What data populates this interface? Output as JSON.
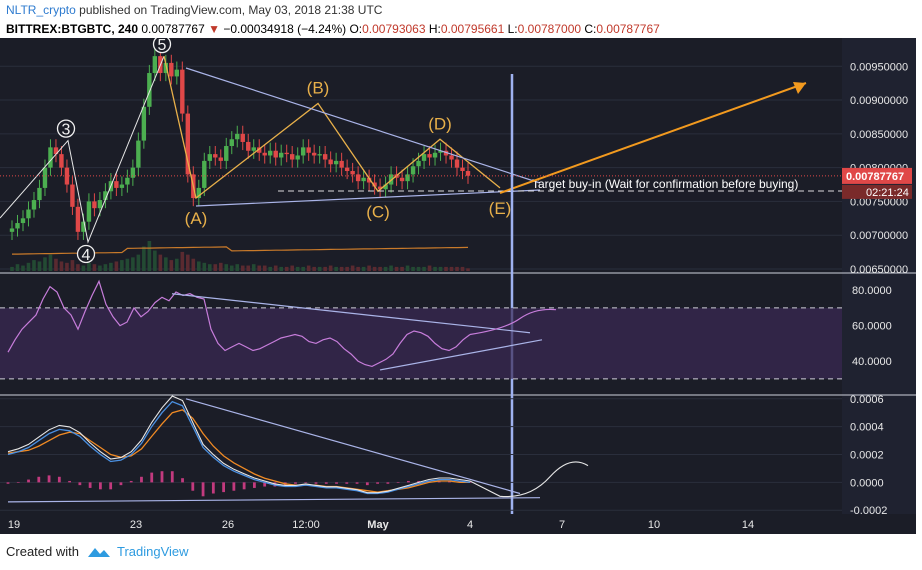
{
  "header": {
    "user": "NLTR_crypto",
    "published": "published on TradingView.com, May 03, 2018 21:38 UTC",
    "symbol": "BITTREX:BTGBTC, 240",
    "price": "0.00787767",
    "change": "−0.00034918 (−4.24%)",
    "o_label": "O:",
    "o_value": "0.00793063",
    "h_label": "H:",
    "h_value": "0.00795661",
    "l_label": "L:",
    "l_value": "0.00787000",
    "c_label": "C:",
    "c_value": "0.00787767"
  },
  "footer": {
    "created_with": "Created with",
    "brand": "TradingView"
  },
  "colors": {
    "background": "#1b1d27",
    "candle_up": "#4caf50",
    "candle_down": "#e04848",
    "wave": "#e8b04a",
    "trendline": "#aab4e8",
    "rsi": "#c77ddb",
    "macd": "#4a90e2",
    "signal": "#f08a24",
    "price_tag": "#e04848"
  },
  "chart_data": {
    "type": "candlestick",
    "x_ticks": [
      "19",
      "23",
      "26",
      "12:00",
      "May",
      "4",
      "7",
      "10",
      "14"
    ],
    "price_axis": {
      "ticks": [
        "0.00950000",
        "0.00900000",
        "0.00850000",
        "0.00800000",
        "0.00750000",
        "0.00700000",
        "0.00650000"
      ],
      "ylim": [
        0.0065,
        0.0098
      ],
      "last_price": "0.00787767",
      "countdown": "02:21:24"
    },
    "price_close": [
      0.0071,
      0.00718,
      0.00725,
      0.00738,
      0.00752,
      0.0077,
      0.008,
      0.0083,
      0.0082,
      0.008,
      0.00775,
      0.00742,
      0.00705,
      0.0072,
      0.0075,
      0.0074,
      0.00752,
      0.00765,
      0.0078,
      0.0077,
      0.00775,
      0.00785,
      0.008,
      0.0084,
      0.0089,
      0.0094,
      0.00965,
      0.0094,
      0.00955,
      0.00935,
      0.00945,
      0.0088,
      0.0079,
      0.00755,
      0.0077,
      0.0081,
      0.0082,
      0.00815,
      0.0081,
      0.00832,
      0.00842,
      0.0085,
      0.00838,
      0.00825,
      0.0083,
      0.00822,
      0.00818,
      0.00825,
      0.00815,
      0.00822,
      0.0082,
      0.00812,
      0.00818,
      0.0083,
      0.00822,
      0.00818,
      0.0082,
      0.00812,
      0.00805,
      0.0081,
      0.008,
      0.00795,
      0.0079,
      0.0078,
      0.00785,
      0.00778,
      0.00772,
      0.00768,
      0.00775,
      0.0079,
      0.00785,
      0.0078,
      0.0079,
      0.00802,
      0.0081,
      0.0082,
      0.00815,
      0.00822,
      0.00825,
      0.00818,
      0.00812,
      0.008,
      0.00795,
      0.00788
    ],
    "wave_labels": [
      {
        "label": "3",
        "price": 0.0084
      },
      {
        "label": "4",
        "price": 0.0069
      },
      {
        "label": "5",
        "price": 0.00965
      },
      {
        "label": "(A)",
        "price": 0.00755
      },
      {
        "label": "(B)",
        "price": 0.00895
      },
      {
        "label": "(C)",
        "price": 0.00765
      },
      {
        "label": "(D)",
        "price": 0.00842
      },
      {
        "label": "(E)",
        "price": 0.0077
      }
    ],
    "annotation": "Target buy-in (Wait for confirmation before buying)",
    "rsi_axis": {
      "ticks": [
        "80.0000",
        "60.0000",
        "40.0000"
      ],
      "ylim": [
        22,
        88
      ],
      "upper_band": 70,
      "lower_band": 30
    },
    "rsi": [
      45,
      52,
      58,
      62,
      66,
      75,
      82,
      79,
      70,
      66,
      58,
      68,
      77,
      85,
      72,
      65,
      60,
      62,
      70,
      65,
      68,
      73,
      76,
      74,
      79,
      77,
      78,
      76,
      75,
      58,
      50,
      46,
      48,
      50,
      48,
      46,
      47,
      49,
      51,
      53,
      54,
      55,
      54,
      51,
      50,
      52,
      53,
      51,
      47,
      44,
      40,
      38,
      37,
      39,
      41,
      44,
      50,
      55,
      57,
      56,
      54,
      50,
      47,
      46,
      48,
      52,
      55
    ],
    "macd_axis": {
      "ticks": [
        "0.0006",
        "0.0004",
        "0.0002",
        "0.0000",
        "-0.0002"
      ],
      "ylim": [
        -0.00022,
        0.00062
      ]
    },
    "macd": [
      0.0002,
      0.00022,
      0.00025,
      0.0003,
      0.00035,
      0.00038,
      0.00037,
      0.00033,
      0.00026,
      0.0002,
      0.00015,
      0.00016,
      0.0002,
      0.00028,
      0.0004,
      0.0005,
      0.00058,
      0.00055,
      0.0004,
      0.00025,
      0.00018,
      0.00012,
      8e-05,
      5e-05,
      2e-05,
      0.0,
      -2e-05,
      -3e-05,
      -3e-05,
      -2e-05,
      -3e-05,
      -4e-05,
      -4e-05,
      -5e-05,
      -6e-05,
      -8e-05,
      -8e-05,
      -7e-05,
      -5e-05,
      -3e-05,
      -1e-05,
      1e-05,
      2e-05,
      2e-05,
      1e-05,
      0.0
    ],
    "signal": [
      0.00021,
      0.00022,
      0.00023,
      0.00026,
      0.0003,
      0.00034,
      0.00036,
      0.00035,
      0.0003,
      0.00025,
      0.0002,
      0.00018,
      0.00019,
      0.00024,
      0.00033,
      0.00042,
      0.0005,
      0.00052,
      0.00046,
      0.00035,
      0.00026,
      0.00019,
      0.00014,
      0.0001,
      6e-05,
      3e-05,
      1e-05,
      -1e-05,
      -2e-05,
      -2e-05,
      -2e-05,
      -3e-05,
      -3e-05,
      -4e-05,
      -5e-05,
      -6e-05,
      -7e-05,
      -6e-05,
      -5e-05,
      -4e-05,
      -2e-05,
      0.0,
      1e-05,
      1e-05,
      0.0,
      0.0
    ],
    "histogram": [
      -1e-05,
      0.0,
      2e-05,
      4e-05,
      5e-05,
      4e-05,
      1e-05,
      -2e-05,
      -4e-05,
      -5e-05,
      -5e-05,
      -2e-05,
      1e-05,
      4e-05,
      7e-05,
      8e-05,
      8e-05,
      3e-05,
      -6e-05,
      -0.0001,
      -8e-05,
      -7e-05,
      -6e-05,
      -5e-05,
      -4e-05,
      -3e-05,
      -3e-05,
      -2e-05,
      -1e-05,
      0.0,
      -1e-05,
      -1e-05,
      -1e-05,
      -1e-05,
      -1e-05,
      -2e-05,
      -1e-05,
      -1e-05,
      0.0,
      1e-05,
      1e-05,
      1e-05,
      1e-05,
      1e-05,
      1e-05,
      0.0
    ],
    "volume": [
      3,
      5,
      4,
      6,
      8,
      7,
      10,
      12,
      9,
      7,
      6,
      8,
      5,
      4,
      6,
      5,
      4,
      5,
      6,
      7,
      8,
      9,
      10,
      12,
      18,
      22,
      15,
      12,
      10,
      8,
      9,
      14,
      12,
      9,
      7,
      6,
      5,
      5,
      6,
      5,
      4,
      5,
      4,
      4,
      5,
      4,
      4,
      3,
      4,
      3,
      3,
      4,
      3,
      3,
      4,
      3,
      3,
      3,
      4,
      3,
      3,
      3,
      4,
      3,
      3,
      4,
      3,
      3,
      3,
      4,
      3,
      3,
      4,
      3,
      3,
      3,
      4,
      3,
      3,
      3,
      3,
      3,
      3,
      2
    ]
  }
}
